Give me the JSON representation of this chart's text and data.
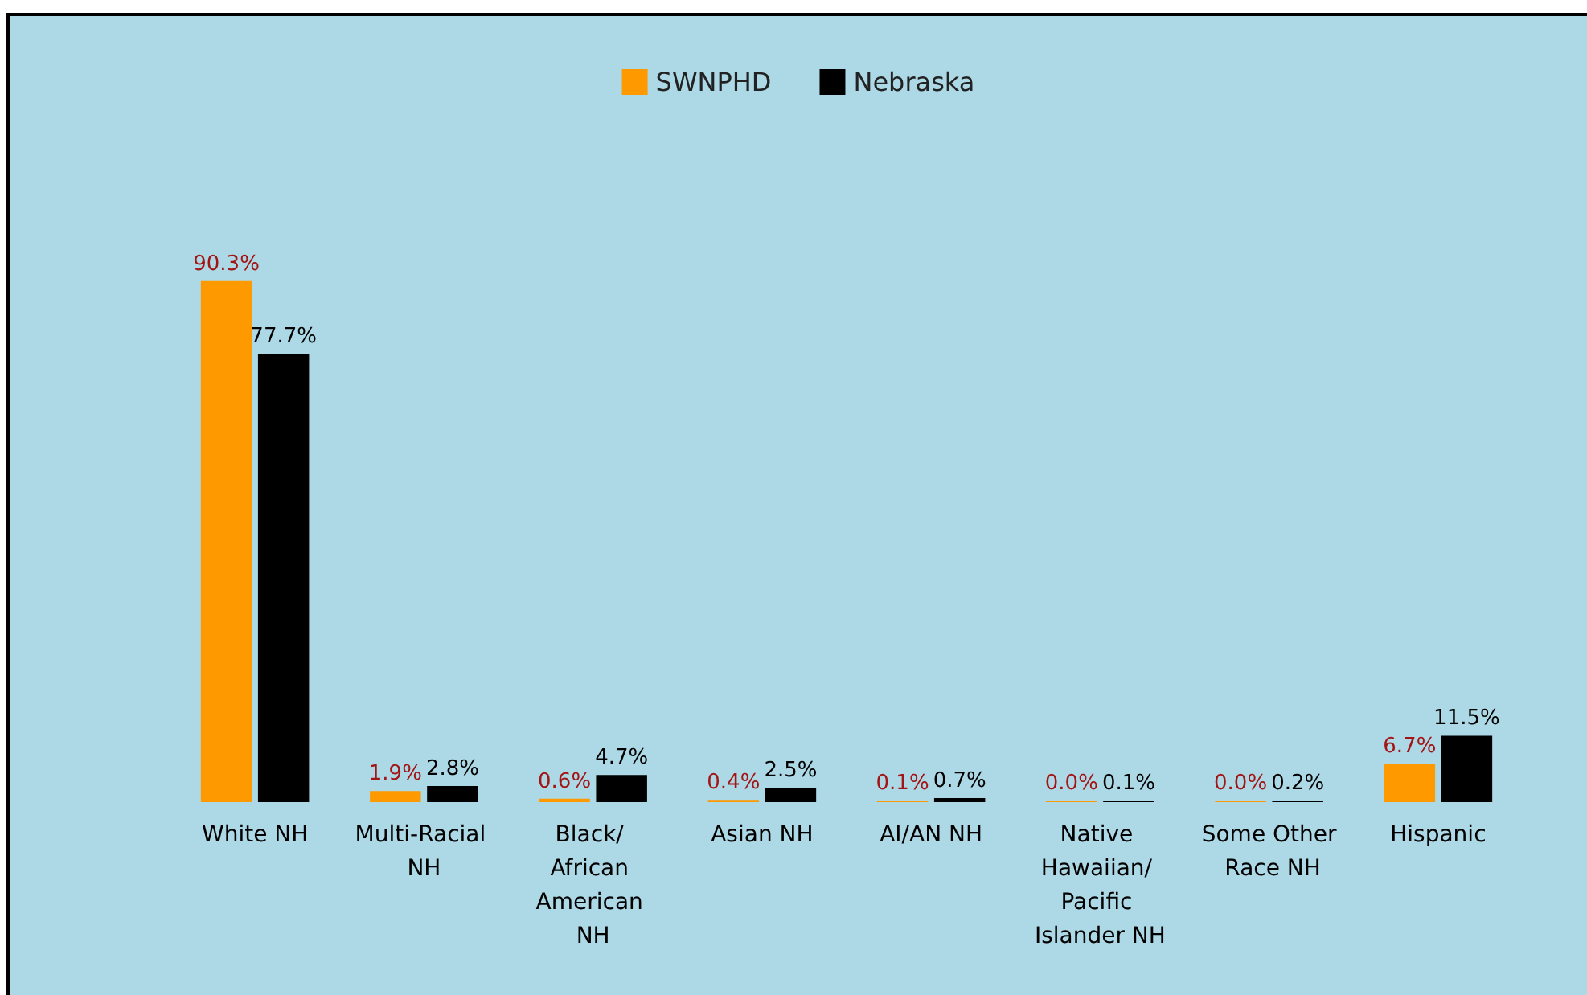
{
  "chart_data": {
    "type": "bar",
    "categories": [
      "White NH",
      "Multi-Racial NH",
      "Black/ African American NH",
      "Asian NH",
      "AI/AN NH",
      "Native Hawaiian/ Pacific Islander NH",
      "Some Other Race NH",
      "Hispanic"
    ],
    "series": [
      {
        "name": "SWNPHD",
        "color": "#ff9900",
        "values": [
          90.3,
          1.9,
          0.6,
          0.4,
          0.1,
          0.0,
          0.0,
          6.7
        ],
        "value_labels": [
          "90.3%",
          "1.9%",
          "0.6%",
          "0.4%",
          "0.1%",
          "0.0%",
          "0.0%",
          "6.7%"
        ]
      },
      {
        "name": "Nebraska",
        "color": "#000000",
        "values": [
          77.7,
          2.8,
          4.7,
          2.5,
          0.7,
          0.1,
          0.2,
          11.5
        ],
        "value_labels": [
          "77.7%",
          "2.8%",
          "4.7%",
          "2.5%",
          "0.7%",
          "0.1%",
          "0.2%",
          "11.5%"
        ]
      }
    ],
    "legend": "top"
  }
}
